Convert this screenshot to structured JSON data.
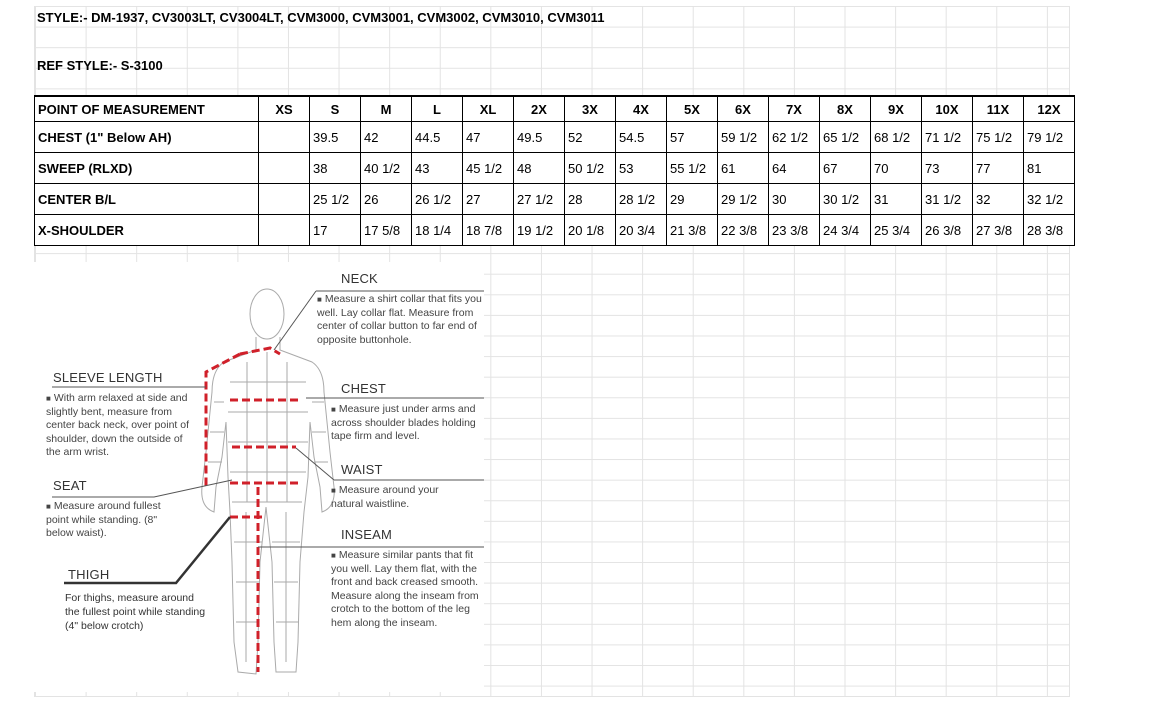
{
  "header": {
    "style_line": "STYLE:- DM-1937, CV3003LT, CV3004LT, CVM3000, CVM3001, CVM3002, CVM3010, CVM3011",
    "ref_style": "REF STYLE:- S-3100"
  },
  "table": {
    "columns": [
      "POINT OF MEASUREMENT",
      "XS",
      "S",
      "M",
      "L",
      "XL",
      "2X",
      "3X",
      "4X",
      "5X",
      "6X",
      "7X",
      "8X",
      "9X",
      "10X",
      "11X",
      "12X"
    ],
    "rows": [
      {
        "label": "CHEST (1\" Below AH)",
        "values": [
          "",
          "39.5",
          "42",
          "44.5",
          "47",
          "49.5",
          "52",
          "54.5",
          "57",
          "59 1/2",
          "62 1/2",
          "65 1/2",
          "68 1/2",
          "71 1/2",
          "75 1/2",
          "79 1/2"
        ]
      },
      {
        "label": "SWEEP (RLXD)",
        "values": [
          "",
          "38",
          "40 1/2",
          "43",
          "45 1/2",
          "48",
          "50 1/2",
          "53",
          "55 1/2",
          "61",
          "64",
          "67",
          "70",
          "73",
          "77",
          "81"
        ]
      },
      {
        "label": "CENTER B/L",
        "values": [
          "",
          "25 1/2",
          "26",
          "26 1/2",
          "27",
          "27 1/2",
          "28",
          "28 1/2",
          "29",
          "29 1/2",
          "30",
          "30 1/2",
          "31",
          "31 1/2",
          "32",
          "32 1/2"
        ]
      },
      {
        "label": "X-SHOULDER",
        "values": [
          "",
          "17",
          "17 5/8",
          "18 1/4",
          "18 7/8",
          "19 1/2",
          "20 1/8",
          "20 3/4",
          "21 3/8",
          "22 3/8",
          "23 3/8",
          "24 3/4",
          "25 3/4",
          "26 3/8",
          "27 3/8",
          "28 3/8"
        ]
      }
    ]
  },
  "guide": {
    "neck": {
      "title": "NECK",
      "text": "Measure a shirt collar that fits you well. Lay collar flat. Measure from center of collar button to far end of opposite buttonhole."
    },
    "sleeve": {
      "title": "SLEEVE LENGTH",
      "text": "With arm relaxed at side and slightly bent, measure from center back neck, over point of shoulder, down the outside of the arm wrist."
    },
    "chest": {
      "title": "CHEST",
      "text": "Measure just under arms and across shoulder blades holding tape firm and level."
    },
    "waist": {
      "title": "WAIST",
      "text": "Measure around your natural waistline."
    },
    "seat": {
      "title": "SEAT",
      "text": "Measure around fullest point while standing. (8\" below waist)."
    },
    "inseam": {
      "title": "INSEAM",
      "text": "Measure similar pants that fit you well. Lay them flat, with the front and back creased smooth. Measure along the inseam from crotch to the bottom of the leg hem along the inseam."
    },
    "thigh": {
      "title": "THIGH",
      "text": "For thighs, measure around the fullest point while standing (4\" below crotch)"
    }
  },
  "colors": {
    "measure_line": "#d0202a",
    "grid": "#e3e3e3"
  }
}
